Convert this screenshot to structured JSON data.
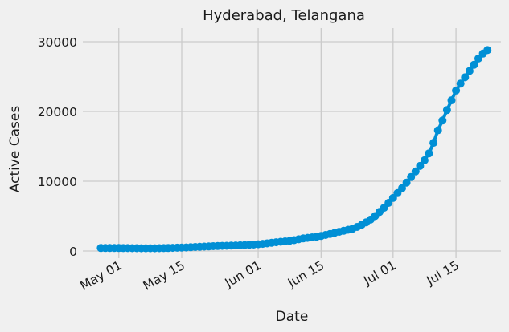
{
  "chart_data": {
    "type": "line",
    "title": "Hyderabad, Telangana",
    "xlabel": "Date",
    "ylabel": "Active Cases",
    "ylim": [
      0,
      30000
    ],
    "y_ticks": [
      0,
      10000,
      20000,
      30000
    ],
    "x_ticks": [
      {
        "date": "2020-05-01",
        "label": "May 01"
      },
      {
        "date": "2020-05-15",
        "label": "May 15"
      },
      {
        "date": "2020-06-01",
        "label": "Jun 01"
      },
      {
        "date": "2020-06-15",
        "label": "Jun 15"
      },
      {
        "date": "2020-07-01",
        "label": "Jul 01"
      },
      {
        "date": "2020-07-15",
        "label": "Jul 15"
      }
    ],
    "grid": true,
    "legend": "none",
    "series": [
      {
        "color": "#008fd5",
        "points": [
          {
            "x": "2020-04-27",
            "y": 420
          },
          {
            "x": "2020-04-28",
            "y": 420
          },
          {
            "x": "2020-04-29",
            "y": 420
          },
          {
            "x": "2020-04-30",
            "y": 420
          },
          {
            "x": "2020-05-01",
            "y": 420
          },
          {
            "x": "2020-05-02",
            "y": 410
          },
          {
            "x": "2020-05-03",
            "y": 410
          },
          {
            "x": "2020-05-04",
            "y": 400
          },
          {
            "x": "2020-05-05",
            "y": 400
          },
          {
            "x": "2020-05-06",
            "y": 390
          },
          {
            "x": "2020-05-07",
            "y": 390
          },
          {
            "x": "2020-05-08",
            "y": 390
          },
          {
            "x": "2020-05-09",
            "y": 390
          },
          {
            "x": "2020-05-10",
            "y": 400
          },
          {
            "x": "2020-05-11",
            "y": 410
          },
          {
            "x": "2020-05-12",
            "y": 430
          },
          {
            "x": "2020-05-13",
            "y": 450
          },
          {
            "x": "2020-05-14",
            "y": 470
          },
          {
            "x": "2020-05-15",
            "y": 490
          },
          {
            "x": "2020-05-16",
            "y": 510
          },
          {
            "x": "2020-05-17",
            "y": 540
          },
          {
            "x": "2020-05-18",
            "y": 570
          },
          {
            "x": "2020-05-19",
            "y": 600
          },
          {
            "x": "2020-05-20",
            "y": 630
          },
          {
            "x": "2020-05-21",
            "y": 660
          },
          {
            "x": "2020-05-22",
            "y": 690
          },
          {
            "x": "2020-05-23",
            "y": 710
          },
          {
            "x": "2020-05-24",
            "y": 730
          },
          {
            "x": "2020-05-25",
            "y": 750
          },
          {
            "x": "2020-05-26",
            "y": 770
          },
          {
            "x": "2020-05-27",
            "y": 790
          },
          {
            "x": "2020-05-28",
            "y": 820
          },
          {
            "x": "2020-05-29",
            "y": 850
          },
          {
            "x": "2020-05-30",
            "y": 880
          },
          {
            "x": "2020-05-31",
            "y": 920
          },
          {
            "x": "2020-06-01",
            "y": 960
          },
          {
            "x": "2020-06-02",
            "y": 1020
          },
          {
            "x": "2020-06-03",
            "y": 1090
          },
          {
            "x": "2020-06-04",
            "y": 1170
          },
          {
            "x": "2020-06-05",
            "y": 1250
          },
          {
            "x": "2020-06-06",
            "y": 1320
          },
          {
            "x": "2020-06-07",
            "y": 1380
          },
          {
            "x": "2020-06-08",
            "y": 1450
          },
          {
            "x": "2020-06-09",
            "y": 1550
          },
          {
            "x": "2020-06-10",
            "y": 1680
          },
          {
            "x": "2020-06-11",
            "y": 1800
          },
          {
            "x": "2020-06-12",
            "y": 1880
          },
          {
            "x": "2020-06-13",
            "y": 1950
          },
          {
            "x": "2020-06-14",
            "y": 2050
          },
          {
            "x": "2020-06-15",
            "y": 2150
          },
          {
            "x": "2020-06-16",
            "y": 2300
          },
          {
            "x": "2020-06-17",
            "y": 2450
          },
          {
            "x": "2020-06-18",
            "y": 2600
          },
          {
            "x": "2020-06-19",
            "y": 2750
          },
          {
            "x": "2020-06-20",
            "y": 2900
          },
          {
            "x": "2020-06-21",
            "y": 3050
          },
          {
            "x": "2020-06-22",
            "y": 3200
          },
          {
            "x": "2020-06-23",
            "y": 3450
          },
          {
            "x": "2020-06-24",
            "y": 3750
          },
          {
            "x": "2020-06-25",
            "y": 4100
          },
          {
            "x": "2020-06-26",
            "y": 4500
          },
          {
            "x": "2020-06-27",
            "y": 5000
          },
          {
            "x": "2020-06-28",
            "y": 5600
          },
          {
            "x": "2020-06-29",
            "y": 6200
          },
          {
            "x": "2020-06-30",
            "y": 6900
          },
          {
            "x": "2020-07-01",
            "y": 7600
          },
          {
            "x": "2020-07-02",
            "y": 8300
          },
          {
            "x": "2020-07-03",
            "y": 9000
          },
          {
            "x": "2020-07-04",
            "y": 9800
          },
          {
            "x": "2020-07-05",
            "y": 10600
          },
          {
            "x": "2020-07-06",
            "y": 11400
          },
          {
            "x": "2020-07-07",
            "y": 12200
          },
          {
            "x": "2020-07-08",
            "y": 13000
          },
          {
            "x": "2020-07-09",
            "y": 14000
          },
          {
            "x": "2020-07-10",
            "y": 15500
          },
          {
            "x": "2020-07-11",
            "y": 17300
          },
          {
            "x": "2020-07-12",
            "y": 18700
          },
          {
            "x": "2020-07-13",
            "y": 20200
          },
          {
            "x": "2020-07-14",
            "y": 21600
          },
          {
            "x": "2020-07-15",
            "y": 23000
          },
          {
            "x": "2020-07-16",
            "y": 24000
          },
          {
            "x": "2020-07-17",
            "y": 24900
          },
          {
            "x": "2020-07-18",
            "y": 25800
          },
          {
            "x": "2020-07-19",
            "y": 26700
          },
          {
            "x": "2020-07-20",
            "y": 27600
          },
          {
            "x": "2020-07-21",
            "y": 28300
          },
          {
            "x": "2020-07-22",
            "y": 28800
          }
        ]
      }
    ]
  }
}
